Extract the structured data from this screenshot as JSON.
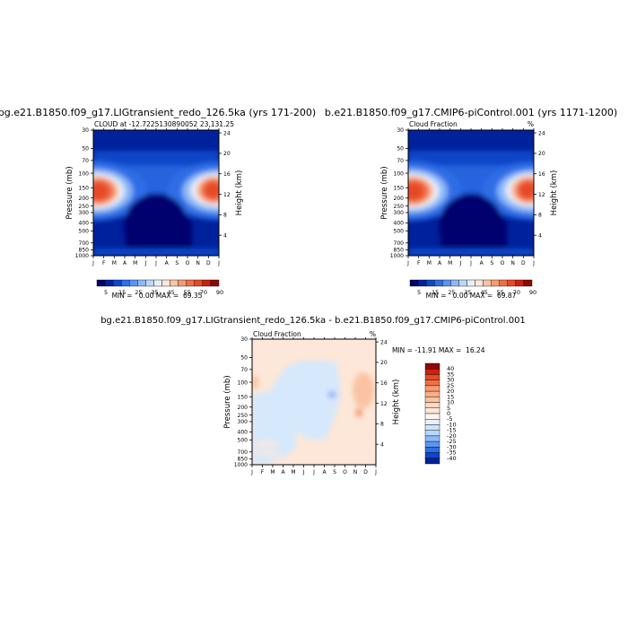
{
  "panels": [
    {
      "title": "bg.e21.B1850.f09_g17.LIGtransient_redo_126.5ka (yrs 171-200)",
      "left_label": "CLOUD at -12.7225130890052",
      "right_label": "23,131.25",
      "minmax": "MIN =   0.00 MAX =  69.35"
    },
    {
      "title": "b.e21.B1850.f09_g17.CMIP6-piControl.001 (yrs 1171-1200)",
      "left_label": "Cloud Fraction",
      "right_label": "%",
      "minmax": "MIN =   0.00 MAX =  69.87"
    },
    {
      "title": "bg.e21.B1850.f09_g17.LIGtransient_redo_126.5ka - b.e21.B1850.f09_g17.CMIP6-piControl.001",
      "left_label": "Cloud Fraction",
      "right_label": "%",
      "minmax": "MIN = -11.91 MAX =  16.24"
    }
  ],
  "chart_data": [
    {
      "type": "heatmap",
      "title": "bg.e21.B1850.f09_g17.LIGtransient_redo_126.5ka (yrs 171-200)",
      "xlabel": "",
      "ylabel": "Pressure (mb)",
      "y2label": "Height (km)",
      "x_ticks": [
        "J",
        "F",
        "M",
        "A",
        "M",
        "J",
        "J",
        "A",
        "S",
        "O",
        "N",
        "D",
        "J"
      ],
      "y_ticks": [
        "30",
        "50",
        "70",
        "100",
        "150",
        "200",
        "250",
        "300",
        "400",
        "500",
        "700",
        "850",
        "1000"
      ],
      "y2_ticks": [
        "24",
        "20",
        "16",
        "12",
        "8",
        "4"
      ],
      "min": 0.0,
      "max": 69.35,
      "colorbar_levels": [
        "5",
        "15",
        "25",
        "35",
        "45",
        "55",
        "70",
        "90"
      ],
      "colorbar_colors": [
        "#00006e",
        "#00219c",
        "#0d47c8",
        "#2e6ee6",
        "#5b95f2",
        "#8cb8f7",
        "#bcd6fb",
        "#e6f0fd",
        "#fde7d8",
        "#fbc3a3",
        "#f69b72",
        "#f06f48",
        "#e64a25",
        "#c9220f",
        "#8c0a04"
      ]
    },
    {
      "type": "heatmap",
      "title": "b.e21.B1850.f09_g17.CMIP6-piControl.001 (yrs 1171-1200)",
      "xlabel": "",
      "ylabel": "Pressure (mb)",
      "y2label": "Height (km)",
      "x_ticks": [
        "J",
        "F",
        "M",
        "A",
        "M",
        "J",
        "J",
        "A",
        "S",
        "O",
        "N",
        "D",
        "J"
      ],
      "y_ticks": [
        "30",
        "50",
        "70",
        "100",
        "150",
        "200",
        "250",
        "300",
        "400",
        "500",
        "700",
        "850",
        "1000"
      ],
      "y2_ticks": [
        "24",
        "20",
        "16",
        "12",
        "8",
        "4"
      ],
      "min": 0.0,
      "max": 69.87,
      "colorbar_levels": [
        "5",
        "15",
        "25",
        "35",
        "45",
        "55",
        "70",
        "90"
      ],
      "colorbar_colors": [
        "#00006e",
        "#00219c",
        "#0d47c8",
        "#2e6ee6",
        "#5b95f2",
        "#8cb8f7",
        "#bcd6fb",
        "#e6f0fd",
        "#fde7d8",
        "#fbc3a3",
        "#f69b72",
        "#f06f48",
        "#e64a25",
        "#c9220f",
        "#8c0a04"
      ]
    },
    {
      "type": "heatmap",
      "title": "bg.e21.B1850.f09_g17.LIGtransient_redo_126.5ka - b.e21.B1850.f09_g17.CMIP6-piControl.001",
      "xlabel": "",
      "ylabel": "Pressure (mb)",
      "y2label": "Height (km)",
      "x_ticks": [
        "J",
        "F",
        "M",
        "A",
        "M",
        "J",
        "J",
        "A",
        "S",
        "O",
        "N",
        "D",
        "J"
      ],
      "y_ticks": [
        "30",
        "50",
        "70",
        "100",
        "150",
        "200",
        "250",
        "300",
        "400",
        "500",
        "700",
        "850",
        "1000"
      ],
      "y2_ticks": [
        "24",
        "20",
        "16",
        "12",
        "8",
        "4"
      ],
      "min": -11.91,
      "max": 16.24,
      "colorbar_levels": [
        "40",
        "35",
        "30",
        "25",
        "20",
        "15",
        "10",
        "5",
        "0",
        "-5",
        "-10",
        "-15",
        "-20",
        "-25",
        "-30",
        "-35",
        "-40"
      ],
      "colorbar_colors": [
        "#8c0a04",
        "#c9220f",
        "#e64a25",
        "#f06f48",
        "#f69b72",
        "#fbad86",
        "#fbc3a3",
        "#fdd8c1",
        "#fde7d8",
        "#fff5ee",
        "#e6f0fd",
        "#cfe2fb",
        "#bcd6fb",
        "#8cb8f7",
        "#5b95f2",
        "#2e6ee6",
        "#0d47c8",
        "#00219c"
      ]
    }
  ]
}
